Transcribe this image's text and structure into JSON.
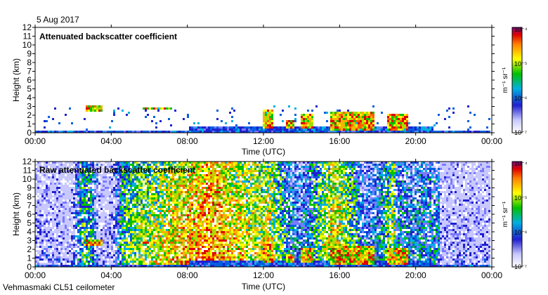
{
  "header": {
    "date": "5 Aug 2017"
  },
  "footer": {
    "instrument": "Vehmasmaki CL51 ceilometer"
  },
  "colorbar": {
    "unit": "m⁻¹ sr⁻¹",
    "ticks": [
      "10⁻⁴",
      "10⁻⁵",
      "10⁻⁶",
      "10⁻⁷"
    ]
  },
  "chart_data": [
    {
      "type": "heatmap",
      "title": "Attenuated backscatter coefficient",
      "xlabel": "Time (UTC)",
      "ylabel": "Height (km)",
      "xticks": [
        "00:00",
        "04:00",
        "08:00",
        "12:00",
        "16:00",
        "20:00",
        "00:00"
      ],
      "xlim": [
        0,
        24
      ],
      "ylim": [
        0,
        12
      ],
      "yticks": [
        0,
        1,
        2,
        3,
        4,
        5,
        6,
        7,
        8,
        9,
        10,
        11,
        12
      ],
      "colorscale": "log",
      "clim": [
        "1e-7",
        "1e-4"
      ]
    },
    {
      "type": "heatmap",
      "title": "Raw attenuated backscatter coefficient",
      "xlabel": "Time (UTC)",
      "ylabel": "Height (km)",
      "xticks": [
        "00:00",
        "04:00",
        "08:00",
        "12:00",
        "16:00",
        "20:00",
        "00:00"
      ],
      "xlim": [
        0,
        24
      ],
      "ylim": [
        0,
        12
      ],
      "yticks": [
        0,
        1,
        2,
        3,
        4,
        5,
        6,
        7,
        8,
        9,
        10,
        11,
        12
      ],
      "colorscale": "log",
      "clim": [
        "1e-7",
        "1e-4"
      ]
    }
  ]
}
